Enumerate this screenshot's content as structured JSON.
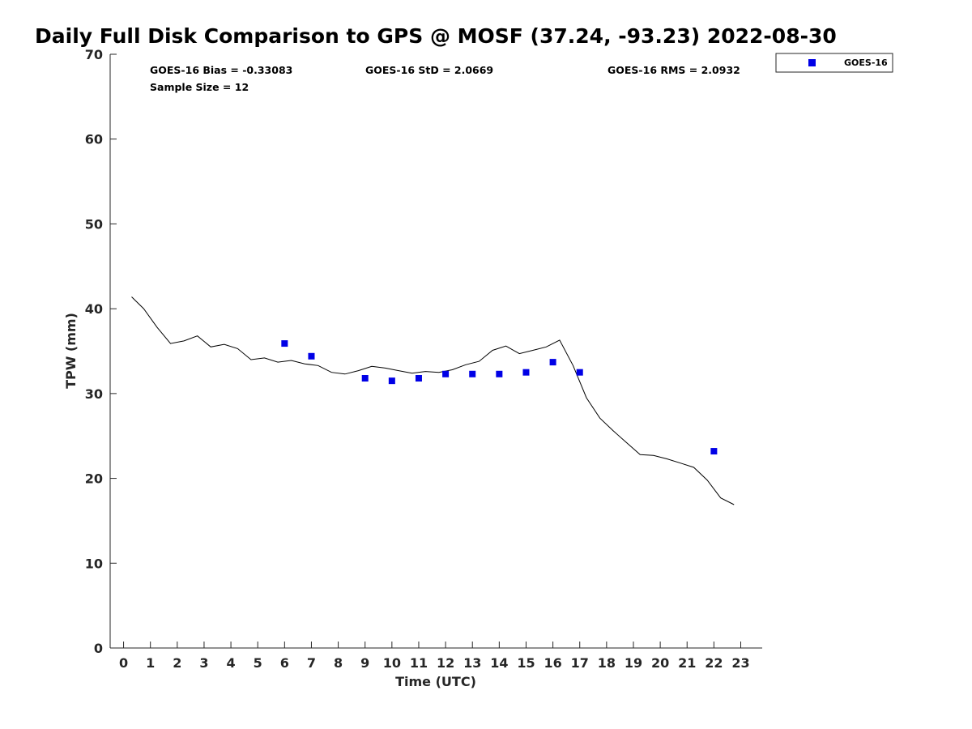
{
  "chart_data": {
    "type": "scatter",
    "title": "Daily Full Disk Comparison to GPS @ MOSF (37.24, -93.23) 2022-08-30",
    "xlabel": "Time (UTC)",
    "ylabel": "TPW (mm)",
    "xlim": [
      -0.5,
      23.8
    ],
    "ylim": [
      0,
      70
    ],
    "xticks": [
      0,
      1,
      2,
      3,
      4,
      5,
      6,
      7,
      8,
      9,
      10,
      11,
      12,
      13,
      14,
      15,
      16,
      17,
      18,
      19,
      20,
      21,
      22,
      23
    ],
    "yticks": [
      0,
      10,
      20,
      30,
      40,
      50,
      60,
      70
    ],
    "stats": {
      "bias": "GOES-16 Bias = -0.33083",
      "std": "GOES-16 StD = 2.0669",
      "rms": "GOES-16 RMS = 2.0932",
      "sample": "Sample Size = 12"
    },
    "legend": {
      "label": "GOES-16",
      "position": "top-right-outside"
    },
    "series": [
      {
        "name": "GPS",
        "kind": "line",
        "color": "#000000",
        "x": [
          0.3,
          0.75,
          1.25,
          1.75,
          2.25,
          2.75,
          3.25,
          3.75,
          4.25,
          4.75,
          5.25,
          5.75,
          6.25,
          6.75,
          7.25,
          7.75,
          8.25,
          8.75,
          9.25,
          9.75,
          10.25,
          10.75,
          11.25,
          11.75,
          12.25,
          12.75,
          13.25,
          13.75,
          14.25,
          14.75,
          15.25,
          15.75,
          16.25,
          16.75,
          17.25,
          17.75,
          18.25,
          18.75,
          19.25,
          19.75,
          20.25,
          20.75,
          21.25,
          21.75,
          22.25,
          22.75
        ],
        "y": [
          41.4,
          40.0,
          37.8,
          35.9,
          36.2,
          36.8,
          35.5,
          35.8,
          35.3,
          34.0,
          34.2,
          33.7,
          33.9,
          33.5,
          33.3,
          32.5,
          32.3,
          32.7,
          33.2,
          33.0,
          32.7,
          32.4,
          32.6,
          32.5,
          32.8,
          33.4,
          33.8,
          35.1,
          35.6,
          34.7,
          35.1,
          35.5,
          36.3,
          33.3,
          29.5,
          27.1,
          25.6,
          24.2,
          22.8,
          22.7,
          22.3,
          21.8,
          21.3,
          19.8,
          17.7,
          16.9
        ]
      },
      {
        "name": "GOES-16",
        "kind": "marker",
        "color": "#0000e6",
        "x": [
          6,
          7,
          9,
          10,
          11,
          12,
          13,
          14,
          15,
          16,
          17,
          22
        ],
        "y": [
          35.9,
          34.4,
          31.8,
          31.5,
          31.8,
          32.3,
          32.3,
          32.3,
          32.5,
          33.7,
          32.5,
          23.2
        ]
      }
    ]
  }
}
